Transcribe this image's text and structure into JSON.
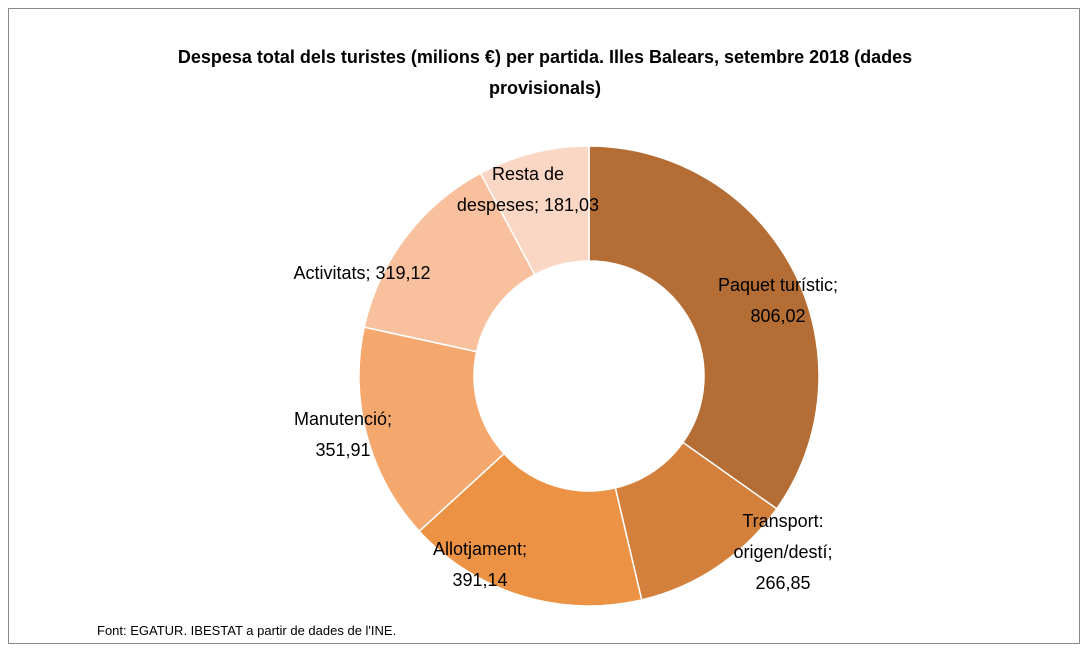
{
  "chart_data": {
    "type": "pie",
    "title": "Despesa total dels turistes (milions €) per partida. Illes Balears, setembre 2018 (dades provisionals)",
    "categories": [
      "Paquet turístic;",
      "Transport: origen/destí;",
      "Allotjament;",
      "Manutenció;",
      "Activitats;",
      "Resta de despeses;"
    ],
    "values": [
      806.02,
      266.85,
      391.14,
      351.91,
      319.12,
      181.03
    ],
    "value_labels": [
      "806,02",
      "266,85",
      "391,14",
      "351,91",
      "319,12",
      "181,03"
    ],
    "colors": [
      "#b46e35",
      "#d4803d",
      "#ec9244",
      "#f5a86e",
      "#f8c09d",
      "#fad6c4"
    ],
    "donut": true,
    "source": "Font: EGATUR. IBESTAT a partir de dades de l'INE."
  }
}
